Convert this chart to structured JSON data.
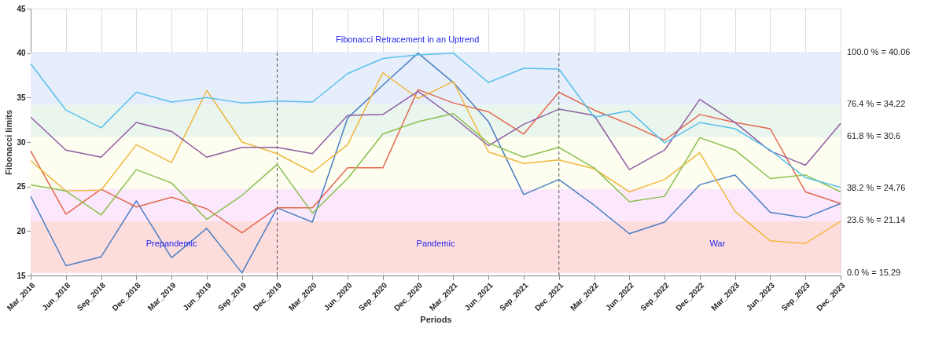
{
  "chart_data": {
    "type": "line",
    "title": "Fibonacci Retracement in an Uptrend",
    "xlabel": "Periods",
    "ylabel": "Fibonacci limits",
    "categories": [
      "Mar_2018",
      "Jun_2018",
      "Sep_2018",
      "Dec_2018",
      "Mar_2019",
      "Jun_2019",
      "Sep_2019",
      "Dec_2019",
      "Mar_2020",
      "Jun_2020",
      "Sep_2020",
      "Dec_2020",
      "Mar_2021",
      "Jun_2021",
      "Sep_2021",
      "Dec_2021",
      "Mar_2022",
      "Jun_2022",
      "Sep_2022",
      "Dec_2022",
      "Mar_2023",
      "Jun_2023",
      "Sep_2023",
      "Dec_2023"
    ],
    "series": [
      {
        "color": "#4a7fc1",
        "values": [
          23.9,
          16.1,
          17.1,
          23.4,
          17.0,
          20.3,
          15.3,
          22.6,
          21.0,
          32.7,
          36.4,
          40.0,
          36.7,
          32.3,
          24.1,
          25.8,
          22.9,
          19.7,
          21.0,
          25.2,
          26.3,
          22.1,
          21.5,
          23.1
        ]
      },
      {
        "color": "#e2684f",
        "values": [
          29.0,
          21.9,
          24.7,
          22.7,
          23.8,
          22.5,
          19.8,
          22.6,
          22.6,
          27.1,
          27.1,
          35.9,
          34.4,
          33.4,
          30.9,
          35.6,
          33.6,
          32.0,
          30.2,
          33.1,
          32.2,
          31.5,
          24.4,
          23.1
        ]
      },
      {
        "color": "#f0b840",
        "values": [
          27.9,
          24.5,
          24.6,
          29.7,
          27.7,
          35.8,
          30.0,
          28.7,
          26.6,
          29.7,
          37.8,
          34.9,
          36.8,
          28.9,
          27.6,
          28.0,
          27.0,
          24.4,
          25.8,
          28.8,
          22.2,
          18.9,
          18.6,
          21.1
        ]
      },
      {
        "color": "#8e5ea2",
        "values": [
          32.8,
          29.1,
          28.3,
          32.2,
          31.2,
          28.3,
          29.4,
          29.4,
          28.7,
          33.0,
          33.1,
          35.7,
          32.8,
          29.6,
          32.0,
          33.7,
          33.0,
          26.9,
          29.1,
          34.8,
          32.2,
          29.0,
          27.4,
          32.1
        ]
      },
      {
        "color": "#8cbf4f",
        "values": [
          25.2,
          24.5,
          21.8,
          26.9,
          25.4,
          21.3,
          24.0,
          27.5,
          22.0,
          25.9,
          30.9,
          32.3,
          33.2,
          29.9,
          28.3,
          29.4,
          27.1,
          23.3,
          23.9,
          30.5,
          29.1,
          25.9,
          26.3,
          24.4
        ]
      },
      {
        "color": "#5bc0eb",
        "values": [
          38.8,
          33.6,
          31.6,
          35.6,
          34.5,
          35.0,
          34.4,
          34.6,
          34.5,
          37.7,
          39.4,
          39.8,
          40.0,
          36.7,
          38.3,
          38.2,
          32.8,
          33.5,
          29.9,
          32.2,
          31.5,
          29.1,
          26.0,
          24.9
        ]
      }
    ],
    "ylim": [
      15,
      45
    ],
    "yticks": [
      15,
      20,
      25,
      30,
      35,
      40,
      45
    ],
    "grid": true,
    "line_style": "solid",
    "marker": "none",
    "bands": [
      {
        "axis": "y",
        "from": 15.29,
        "to": 21.14,
        "label": "0.0 % = 15.29",
        "color": "#fddcdc"
      },
      {
        "axis": "y",
        "from": 21.14,
        "to": 24.76,
        "label": "23.6 % = 21.14",
        "color": "#fbe8fc"
      },
      {
        "axis": "y",
        "from": 24.76,
        "to": 30.6,
        "label": "38.2 % = 24.76",
        "color": "#fdfdf0"
      },
      {
        "axis": "y",
        "from": 30.6,
        "to": 34.22,
        "label": "61.8 % = 30.6",
        "color": "#eaf5ee"
      },
      {
        "axis": "y",
        "from": 34.22,
        "to": 40.06,
        "label": "76.4 % =  34.22",
        "color": "#e6eefb"
      }
    ],
    "ref_lines": [
      {
        "axis": "y",
        "value": 40.06,
        "label": "100.0 % = 40.06",
        "color": "#dde6f5",
        "line_style": "solid"
      },
      {
        "axis": "x",
        "value": "Dec_2019",
        "color": "#555555",
        "line_style": "dashed"
      },
      {
        "axis": "x",
        "value": "Dec_2021",
        "color": "#555555",
        "line_style": "dashed"
      }
    ],
    "annotations": [
      "Prepandemic",
      "Pandemic",
      "War"
    ]
  }
}
